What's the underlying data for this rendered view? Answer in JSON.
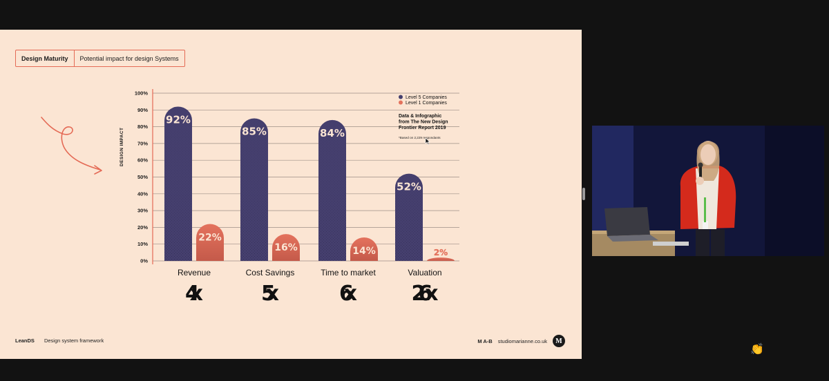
{
  "slide": {
    "tag": {
      "primary": "Design Maturity",
      "secondary": "Potential impact for design Systems"
    },
    "footer": {
      "brand": "LeanDS",
      "subtitle": "Design system framework",
      "initials": "M A-B",
      "website": "studiomarianne.co.uk",
      "logo_letter": "M"
    }
  },
  "chart_data": {
    "type": "bar",
    "ylabel": "DESIGN IMPACT",
    "ylim": [
      0,
      100
    ],
    "yticks": [
      "0%",
      "10%",
      "20%",
      "30%",
      "40%",
      "50%",
      "60%",
      "70%",
      "80%",
      "90%",
      "100%"
    ],
    "categories": [
      "Revenue",
      "Cost Savings",
      "Time to market",
      "Valuation"
    ],
    "multipliers": [
      "4x",
      "5x",
      "6x",
      "26x"
    ],
    "series": [
      {
        "name": "Level 5 Companies",
        "values": [
          92,
          85,
          84,
          52
        ],
        "color": "#453f6e"
      },
      {
        "name": "Level 1 Companies",
        "values": [
          22,
          16,
          14,
          2
        ],
        "color": "#e4725d"
      }
    ],
    "legend_position": "top-right",
    "source_note": "Data & Infographic from The New Design Frontier Report 2019",
    "footnote": "*Based on 2,229 respondants",
    "grid": true
  },
  "colors": {
    "slide_bg": "#fbe5d3",
    "accent": "#e46a55",
    "dark_bar": "#453f6e",
    "light_bar": "#e4725d",
    "background": "#121212"
  },
  "icons": {
    "arrow": "hand-drawn-arrow-icon",
    "cursor": "mouse-cursor-icon",
    "reaction": "clapping-hands-icon"
  }
}
